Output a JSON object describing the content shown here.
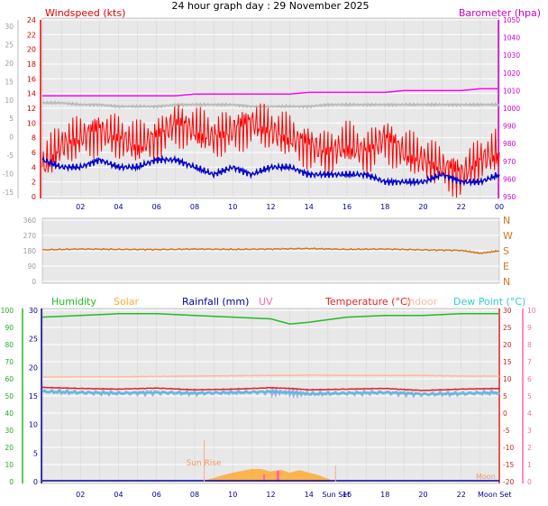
{
  "title": "24 hour graph day : 29 November 2025",
  "colors": {
    "wind": "#ff0000",
    "gust": "#0000cc",
    "baro": "#ff00ff",
    "temperature": "#dd2222",
    "dewpoint": "#33cccc",
    "indoor": "#ffbb99",
    "humidity": "#22bb22",
    "solar": "#ffaa33",
    "rainfall": "#000099",
    "uv": "#ff66aa",
    "winddir": "#cc7722",
    "panel_bg": "#e8e8e8",
    "grid": "#ffffff"
  },
  "x_ticks": [
    "02",
    "04",
    "06",
    "08",
    "10",
    "12",
    "14",
    "16",
    "18",
    "20",
    "22",
    "00"
  ],
  "x_ticks_bottom": [
    "02",
    "04",
    "06",
    "08",
    "10",
    "12",
    "14",
    "16",
    "18",
    "20",
    "22"
  ],
  "chart_data": [
    {
      "type": "line",
      "name_panel": "wind",
      "title_left": "Windspeed (kts)",
      "title_right": "Barometer (hpa)",
      "x": [
        0,
        1,
        2,
        3,
        4,
        5,
        6,
        7,
        8,
        9,
        10,
        11,
        12,
        13,
        14,
        15,
        16,
        17,
        18,
        19,
        20,
        21,
        22,
        23,
        24
      ],
      "series": [
        {
          "name": "Windspeed",
          "values": [
            4,
            7,
            8,
            9,
            8,
            7,
            8,
            10,
            9,
            8,
            9,
            10,
            9,
            8,
            7,
            6,
            7,
            6,
            8,
            6,
            5,
            4,
            3,
            5,
            6
          ]
        },
        {
          "name": "Gust",
          "values": [
            5,
            4,
            4,
            5,
            4,
            4,
            5,
            5,
            4,
            3,
            4,
            3,
            4,
            4,
            3,
            3,
            3,
            3,
            2,
            2,
            2,
            3,
            2,
            2,
            3
          ]
        },
        {
          "name": "Barometer",
          "values": [
            1007,
            1007,
            1007,
            1007,
            1007,
            1007,
            1007,
            1007,
            1008,
            1008,
            1008,
            1008,
            1008,
            1008,
            1009,
            1009,
            1009,
            1009,
            1009,
            1010,
            1010,
            1010,
            1010,
            1011,
            1011
          ]
        },
        {
          "name": "Barometer2",
          "values": [
            1003,
            1003,
            1002,
            1002,
            1001,
            1001,
            1001,
            1002,
            1002,
            1002,
            1002,
            1001,
            1001,
            1001,
            1001,
            1002,
            1002,
            1002,
            1002,
            1002,
            1002,
            1002,
            1002,
            1002,
            1002
          ]
        }
      ],
      "ylim_left": [
        0,
        24
      ],
      "ylim_right": [
        950,
        1050
      ],
      "left_ticks": [
        "0",
        "2",
        "4",
        "6",
        "8",
        "10",
        "12",
        "14",
        "16",
        "18",
        "20",
        "22",
        "24"
      ],
      "right_ticks": [
        "950",
        "960",
        "970",
        "980",
        "990",
        "1000",
        "1010",
        "1020",
        "1030",
        "1040",
        "1050"
      ],
      "outer_ticks": [
        "-15",
        "-10",
        "-5",
        "0",
        "5",
        "10",
        "15",
        "20",
        "25",
        "30"
      ]
    },
    {
      "type": "line",
      "name_panel": "winddir",
      "x": [
        0,
        2,
        4,
        6,
        8,
        10,
        12,
        14,
        16,
        18,
        20,
        22,
        23,
        24
      ],
      "series": [
        {
          "name": "Wind Direction",
          "values": [
            185,
            190,
            188,
            187,
            190,
            188,
            190,
            193,
            188,
            190,
            185,
            182,
            165,
            180
          ]
        }
      ],
      "ylim": [
        0,
        360
      ],
      "left_ticks": [
        "0",
        "90",
        "180",
        "270",
        "360"
      ],
      "right_ticks": [
        "N",
        "W",
        "S",
        "E",
        "N"
      ]
    },
    {
      "type": "line",
      "name_panel": "temp",
      "legend": [
        "Humidity",
        "Solar",
        "Rainfall (mm)",
        "UV",
        "Temperature (°C)",
        "Indoor",
        "Dew Point (°C)"
      ],
      "x": [
        0,
        2,
        4,
        6,
        8,
        10,
        12,
        13,
        14,
        16,
        18,
        20,
        22,
        24
      ],
      "series": [
        {
          "name": "Humidity",
          "values": [
            96,
            97,
            98,
            98,
            97,
            96,
            95,
            92,
            93,
            96,
            97,
            97,
            98,
            98
          ]
        },
        {
          "name": "Temperature",
          "values": [
            7.5,
            7.2,
            7.0,
            7.3,
            6.8,
            7.0,
            7.4,
            7.2,
            6.8,
            7.0,
            7.2,
            6.6,
            7.0,
            7.2
          ]
        },
        {
          "name": "Dew Point",
          "values": [
            6.3,
            6.0,
            5.8,
            6.0,
            5.8,
            6.0,
            6.2,
            6.0,
            5.6,
            5.8,
            6.0,
            5.5,
            5.7,
            6.0
          ]
        },
        {
          "name": "Indoor",
          "values": [
            10.5,
            10.6,
            10.6,
            10.7,
            10.8,
            10.9,
            11.0,
            11.0,
            11.1,
            11.0,
            11.0,
            11.0,
            10.8,
            10.8
          ]
        }
      ],
      "solar_x": [
        8.5,
        9,
        9.5,
        10,
        10.5,
        11,
        11.5,
        12,
        12.5,
        13,
        13.5,
        14,
        14.5,
        15,
        15.3
      ],
      "solar_values": [
        0.3,
        1.0,
        1.8,
        2.5,
        3.0,
        3.5,
        3.5,
        2.8,
        3.3,
        2.5,
        3.2,
        2.5,
        1.8,
        0.8,
        0
      ],
      "left_ticks": [
        "0",
        "5",
        "10",
        "15",
        "20",
        "25",
        "30"
      ],
      "left_outer_ticks": [
        "0",
        "10",
        "20",
        "30",
        "40",
        "50",
        "60",
        "70",
        "80",
        "90",
        "100"
      ],
      "right_ticks": [
        "-20",
        "-15",
        "-10",
        "-5",
        "0",
        "5",
        "10",
        "15",
        "20",
        "25",
        "30"
      ],
      "right_outer_ticks": [
        "0",
        "1",
        "2",
        "3",
        "4",
        "5",
        "6",
        "7",
        "8",
        "9",
        "10"
      ],
      "annotations": {
        "sunrise": "Sun Rise",
        "sunset": "Sun Set",
        "moonset": "Moon Set",
        "moonrise": "Moon"
      }
    }
  ]
}
